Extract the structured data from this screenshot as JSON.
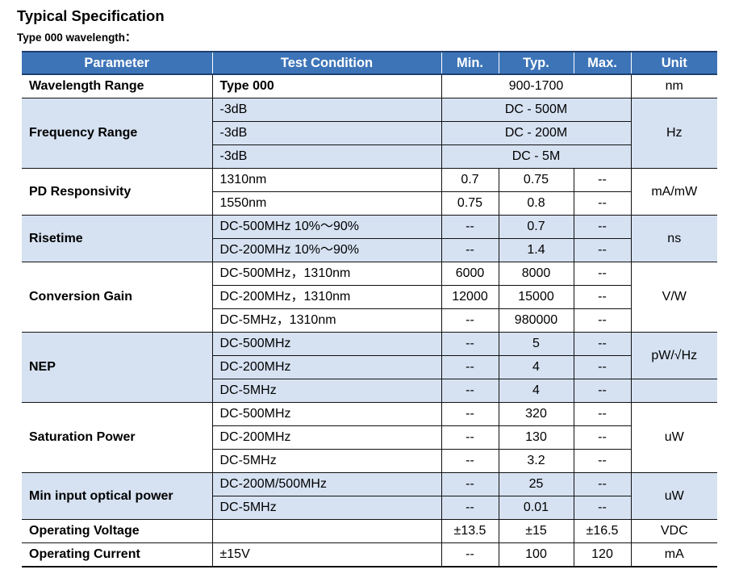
{
  "title": "Typical Specification",
  "subtitle": "Type 000 wavelength：",
  "table": {
    "headers": [
      "Parameter",
      "Test Condition",
      "Min.",
      "Typ.",
      "Max.",
      "Unit"
    ],
    "wavelength": {
      "param": "Wavelength Range",
      "condition": "Type 000",
      "value": "900-1700",
      "unit": "nm"
    },
    "frequency": {
      "param": "Frequency Range",
      "unit": "Hz",
      "rows": [
        {
          "condition": "-3dB",
          "value": "DC - 500M"
        },
        {
          "condition": "-3dB",
          "value": "DC - 200M"
        },
        {
          "condition": "-3dB",
          "value": "DC - 5M"
        }
      ]
    },
    "responsivity": {
      "param": "PD Responsivity",
      "unit": "mA/mW",
      "rows": [
        {
          "condition": "1310nm",
          "min": "0.7",
          "typ": "0.75",
          "max": "--"
        },
        {
          "condition": "1550nm",
          "min": "0.75",
          "typ": "0.8",
          "max": "--"
        }
      ]
    },
    "risetime": {
      "param": "Risetime",
      "unit": "ns",
      "rows": [
        {
          "condition": "DC-500MHz 10%～90%",
          "min": "--",
          "typ": "0.7",
          "max": "--"
        },
        {
          "condition": "DC-200MHz 10%～90%",
          "min": "--",
          "typ": "1.4",
          "max": "--"
        }
      ]
    },
    "gain": {
      "param": "Conversion Gain",
      "unit": "V/W",
      "rows": [
        {
          "condition": "DC-500MHz，1310nm",
          "min": "6000",
          "typ": "8000",
          "max": "--"
        },
        {
          "condition": "DC-200MHz，1310nm",
          "min": "12000",
          "typ": "15000",
          "max": "--"
        },
        {
          "condition": "DC-5MHz，1310nm",
          "min": "--",
          "typ": "980000",
          "max": "--"
        }
      ]
    },
    "nep": {
      "param": "NEP",
      "unit": "pW/√Hz",
      "rows": [
        {
          "condition": "DC-500MHz",
          "min": "--",
          "typ": "5",
          "max": "--"
        },
        {
          "condition": "DC-200MHz",
          "min": "--",
          "typ": "4",
          "max": "--"
        },
        {
          "condition": "DC-5MHz",
          "min": "--",
          "typ": "4",
          "max": "--"
        }
      ]
    },
    "saturation": {
      "param": "Saturation Power",
      "unit": "uW",
      "rows": [
        {
          "condition": "DC-500MHz",
          "min": "--",
          "typ": "320",
          "max": "--"
        },
        {
          "condition": "DC-200MHz",
          "min": "--",
          "typ": "130",
          "max": "--"
        },
        {
          "condition": "DC-5MHz",
          "min": "--",
          "typ": "3.2",
          "max": "--"
        }
      ]
    },
    "min_input": {
      "param": "Min input optical power",
      "unit": "uW",
      "rows": [
        {
          "condition": "DC-200M/500MHz",
          "min": "--",
          "typ": "25",
          "max": "--"
        },
        {
          "condition": "DC-5MHz",
          "min": "--",
          "typ": "0.01",
          "max": "--"
        }
      ]
    },
    "voltage": {
      "param": "Operating Voltage",
      "condition": "",
      "min": "±13.5",
      "typ": "±15",
      "max": "±16.5",
      "unit": "VDC"
    },
    "current": {
      "param": "Operating Current",
      "condition": "±15V",
      "min": "--",
      "typ": "100",
      "max": "120",
      "unit": "mA"
    }
  }
}
